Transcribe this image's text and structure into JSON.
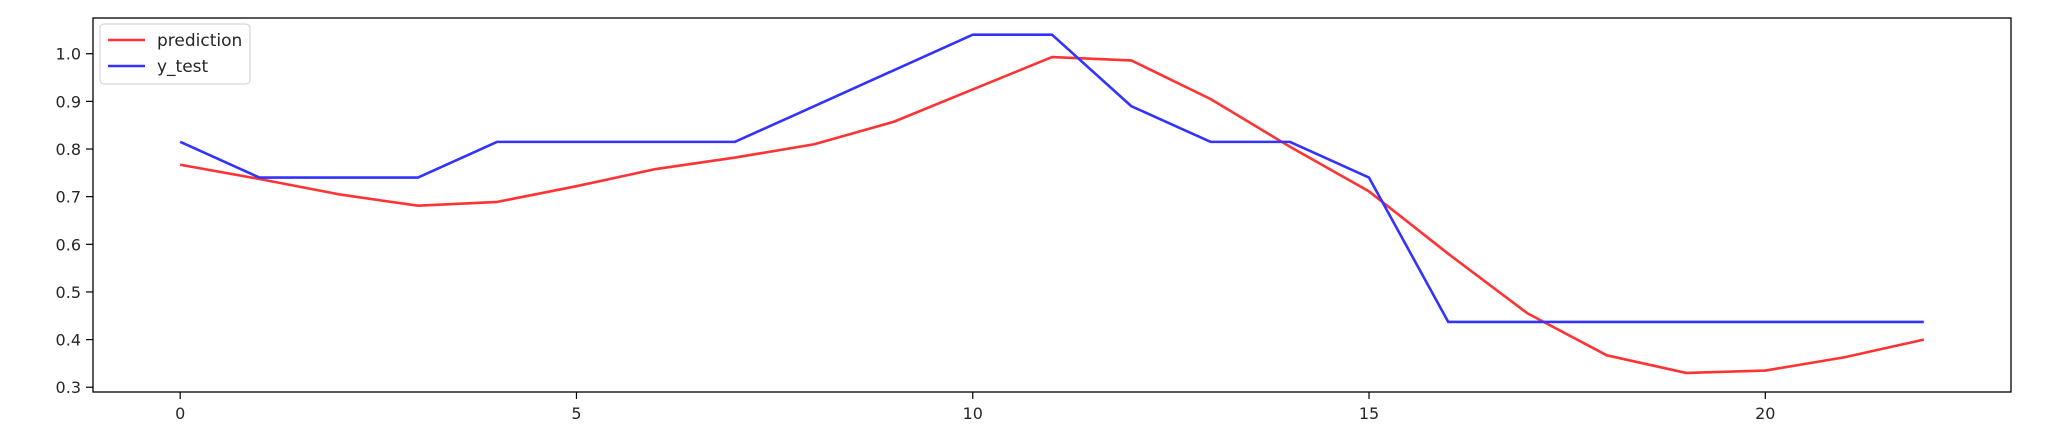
{
  "chart_data": {
    "type": "line",
    "title": "",
    "xlabel": "",
    "ylabel": "",
    "xlim": [
      -1.1,
      23.1
    ],
    "ylim": [
      0.29,
      1.075
    ],
    "grid": false,
    "legend_position": "upper-left",
    "x_ticks": [
      0,
      5,
      10,
      15,
      20
    ],
    "y_ticks": [
      0.3,
      0.4,
      0.5,
      0.6,
      0.7,
      0.8,
      0.9,
      1.0
    ],
    "x_tick_labels": [
      "0",
      "5",
      "10",
      "15",
      "20"
    ],
    "y_tick_labels": [
      "0.3",
      "0.4",
      "0.5",
      "0.6",
      "0.7",
      "0.8",
      "0.9",
      "1.0"
    ],
    "x": [
      0,
      1,
      2,
      3,
      4,
      5,
      6,
      7,
      8,
      9,
      10,
      11,
      12,
      13,
      14,
      15,
      16,
      17,
      18,
      19,
      20,
      21,
      22
    ],
    "series": [
      {
        "name": "prediction",
        "color": "#ff3333",
        "values": [
          0.767,
          0.737,
          0.705,
          0.681,
          0.689,
          0.722,
          0.758,
          0.782,
          0.81,
          0.857,
          0.925,
          0.993,
          0.986,
          0.905,
          0.805,
          0.711,
          0.58,
          0.455,
          0.367,
          0.33,
          0.335,
          0.363,
          0.4
        ]
      },
      {
        "name": "y_test",
        "color": "#3333ff",
        "values": [
          0.815,
          0.74,
          0.74,
          0.74,
          0.815,
          0.815,
          0.815,
          0.815,
          0.89,
          0.965,
          1.04,
          1.04,
          0.89,
          0.815,
          0.815,
          0.74,
          0.437,
          0.437,
          0.437,
          0.437,
          0.437,
          0.437,
          0.437
        ]
      }
    ]
  }
}
